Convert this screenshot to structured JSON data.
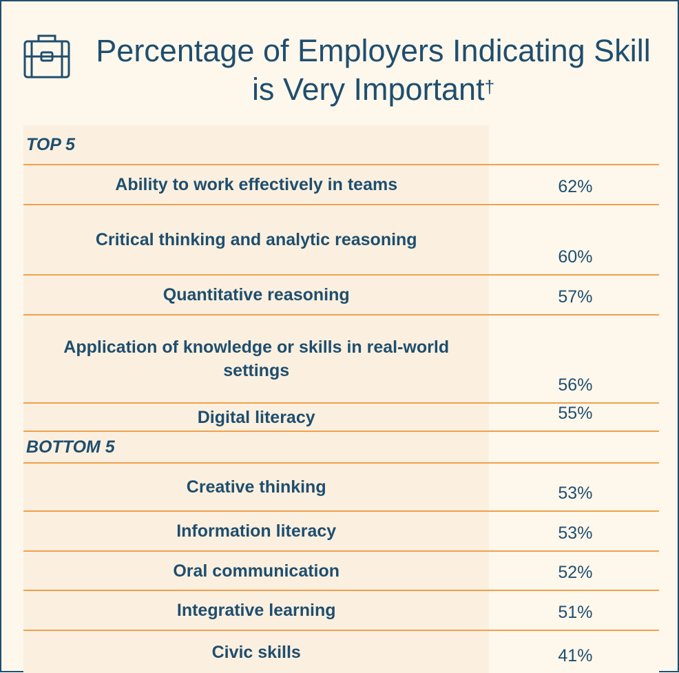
{
  "title": "Percentage of Employers Indicating Skill is Very Important",
  "title_mark": "†",
  "sections": [
    {
      "heading": "TOP 5",
      "rows": [
        {
          "skill": "Ability to work effectively in teams",
          "value": "62%"
        },
        {
          "skill": "Critical thinking and analytic reasoning",
          "value": "60%"
        },
        {
          "skill": "Quantitative reasoning",
          "value": "57%"
        },
        {
          "skill": "Application of knowledge or skills in real-world settings",
          "value": "56%"
        },
        {
          "skill": "Digital literacy",
          "value": "55%"
        }
      ]
    },
    {
      "heading": "BOTTOM 5",
      "rows": [
        {
          "skill": "Creative thinking",
          "value": "53%"
        },
        {
          "skill": "Information literacy",
          "value": "53%"
        },
        {
          "skill": "Oral communication",
          "value": "52%"
        },
        {
          "skill": "Integrative learning",
          "value": "51%"
        },
        {
          "skill": "Civic skills",
          "value": "41%"
        }
      ]
    }
  ]
}
